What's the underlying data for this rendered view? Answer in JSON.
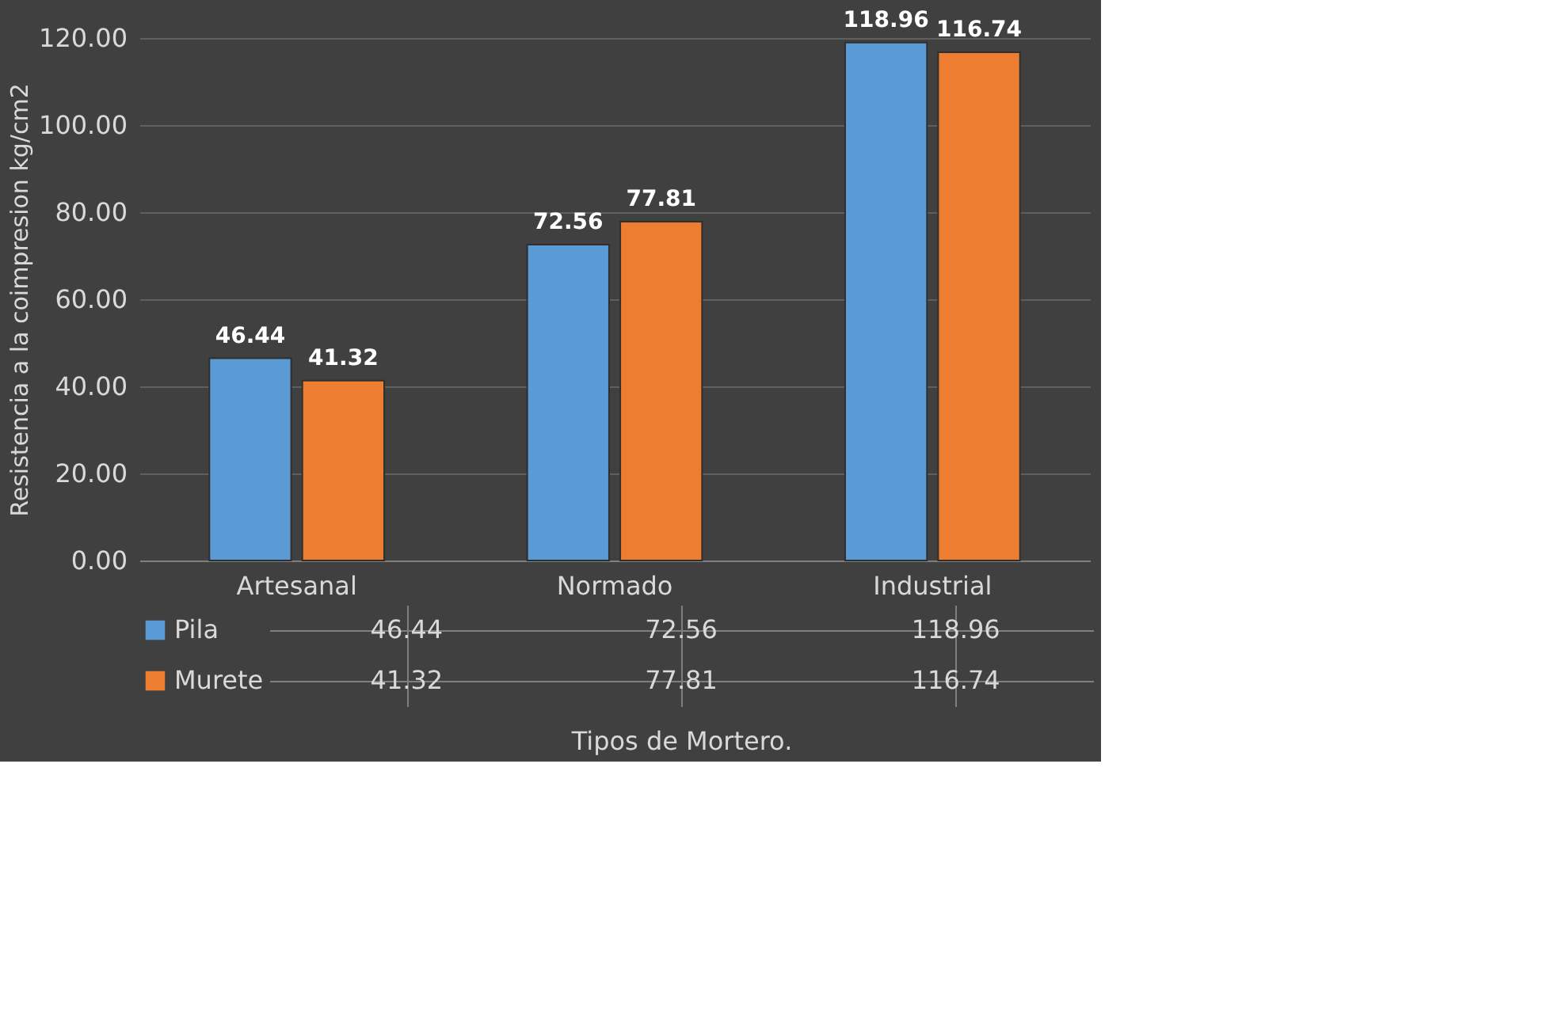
{
  "chart_data": {
    "type": "bar",
    "xlabel": "Tipos de Mortero.",
    "ylabel": "Resistencia a la coimpresion kg/cm2",
    "categories": [
      "Artesanal",
      "Normado",
      "Industrial"
    ],
    "series": [
      {
        "name": "Pila",
        "color": "#5b9bd5",
        "values": [
          46.44,
          72.56,
          118.96
        ],
        "value_labels": [
          "46.44",
          "72.56",
          "118.96"
        ]
      },
      {
        "name": "Murete",
        "color": "#ed7d31",
        "values": [
          41.32,
          77.81,
          116.74
        ],
        "value_labels": [
          "41.32",
          "77.81",
          "116.74"
        ]
      }
    ],
    "ylim": [
      0,
      120
    ],
    "yticks": [
      {
        "value": 0,
        "label": "0.00"
      },
      {
        "value": 20,
        "label": "20.00"
      },
      {
        "value": 40,
        "label": "40.00"
      },
      {
        "value": 60,
        "label": "60.00"
      },
      {
        "value": 80,
        "label": "80.00"
      },
      {
        "value": 100,
        "label": "100.00"
      },
      {
        "value": 120,
        "label": "120.00"
      }
    ],
    "grid": "y",
    "data_labels": true,
    "legend": "bottom"
  }
}
